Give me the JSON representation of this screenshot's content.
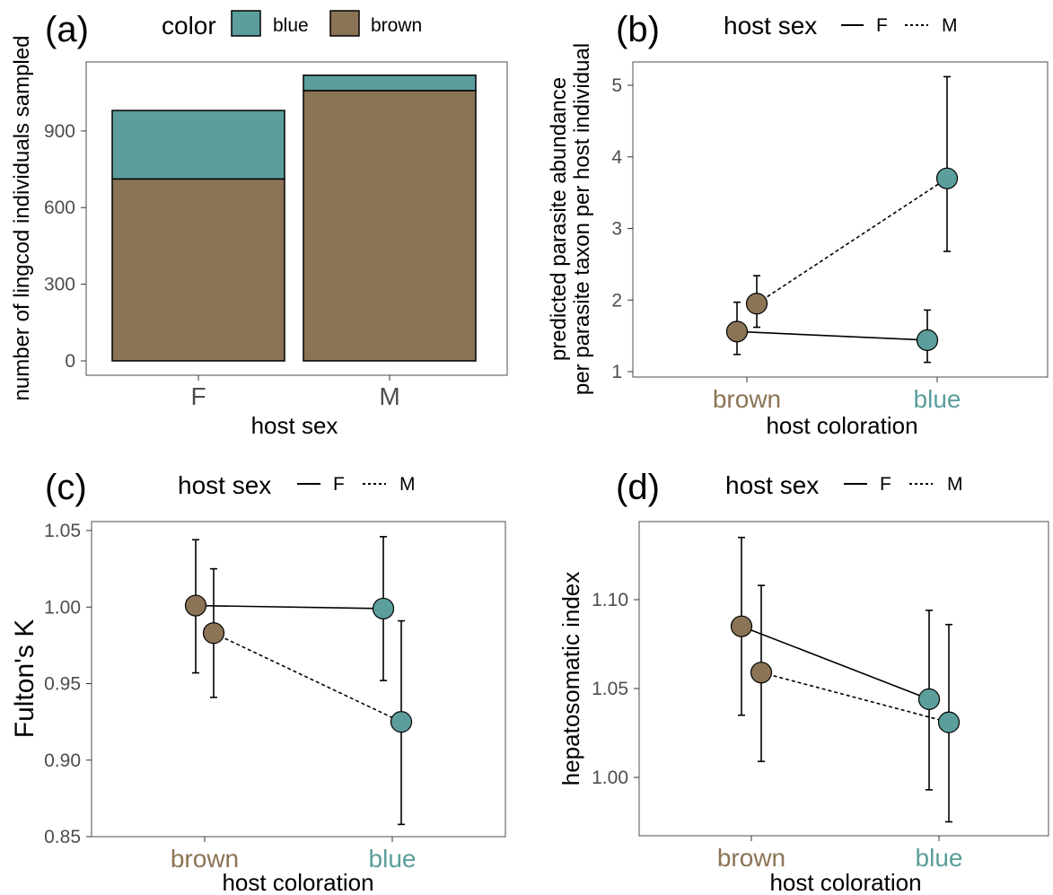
{
  "colors": {
    "brown": "#8b7355",
    "blue": "#5b9e9c"
  },
  "chart_data": [
    {
      "panel": "(a)",
      "type": "bar",
      "stacked": true,
      "categories": [
        "F",
        "M"
      ],
      "series": [
        {
          "name": "brown",
          "values": [
            712,
            1058
          ]
        },
        {
          "name": "blue",
          "values": [
            268,
            60
          ]
        }
      ],
      "xlabel": "host sex",
      "ylabel": "number of lingcod individuals sampled",
      "ylim": [
        0,
        1170
      ],
      "yticks": [
        0,
        300,
        600,
        900
      ],
      "legend": {
        "title": "color",
        "entries": [
          "blue",
          "brown"
        ],
        "placement": "top"
      }
    },
    {
      "panel": "(b)",
      "type": "scatter",
      "categories": [
        "brown",
        "blue"
      ],
      "series": [
        {
          "name": "F",
          "line": "solid",
          "values": [
            1.56,
            1.44
          ],
          "lower": [
            1.24,
            1.13
          ],
          "upper": [
            1.97,
            1.86
          ]
        },
        {
          "name": "M",
          "line": "dashed",
          "values": [
            1.95,
            3.7
          ],
          "lower": [
            1.62,
            2.68
          ],
          "upper": [
            2.34,
            5.12
          ]
        }
      ],
      "xlabel": "host coloration",
      "ylabel": "predicted parasite abundance\nper parasite taxon per host individual",
      "ylim": [
        1,
        5.3
      ],
      "yticks": [
        1,
        2,
        3,
        4,
        5
      ],
      "legend": {
        "title": "host sex",
        "entries": [
          "F",
          "M"
        ],
        "placement": "top"
      }
    },
    {
      "panel": "(c)",
      "type": "scatter",
      "categories": [
        "brown",
        "blue"
      ],
      "series": [
        {
          "name": "F",
          "line": "solid",
          "values": [
            1.001,
            0.999
          ],
          "lower": [
            0.957,
            0.952
          ],
          "upper": [
            1.044,
            1.046
          ]
        },
        {
          "name": "M",
          "line": "dashed",
          "values": [
            0.983,
            0.925
          ],
          "lower": [
            0.941,
            0.858
          ],
          "upper": [
            1.025,
            0.991
          ]
        }
      ],
      "xlabel": "host coloration",
      "ylabel": "Fulton's K",
      "ylim": [
        0.85,
        1.055
      ],
      "yticks": [
        0.85,
        0.9,
        0.95,
        1.0,
        1.05
      ],
      "ytick_labels": [
        "0.85",
        "0.90",
        "0.95",
        "1.00",
        "1.05"
      ],
      "legend": {
        "title": "host sex",
        "entries": [
          "F",
          "M"
        ],
        "placement": "top"
      }
    },
    {
      "panel": "(d)",
      "type": "scatter",
      "categories": [
        "brown",
        "blue"
      ],
      "series": [
        {
          "name": "F",
          "line": "solid",
          "values": [
            1.085,
            1.044
          ],
          "lower": [
            1.035,
            0.993
          ],
          "upper": [
            1.135,
            1.094
          ]
        },
        {
          "name": "M",
          "line": "dashed",
          "values": [
            1.059,
            1.031
          ],
          "lower": [
            1.009,
            0.975
          ],
          "upper": [
            1.108,
            1.086
          ]
        }
      ],
      "xlabel": "host coloration",
      "ylabel": "hepatosomatic index",
      "ylim": [
        0.967,
        1.14
      ],
      "yticks": [
        1.0,
        1.05,
        1.1
      ],
      "ytick_labels": [
        "1.00",
        "1.05",
        "1.10"
      ],
      "legend": {
        "title": "host sex",
        "entries": [
          "F",
          "M"
        ],
        "placement": "top"
      }
    }
  ]
}
